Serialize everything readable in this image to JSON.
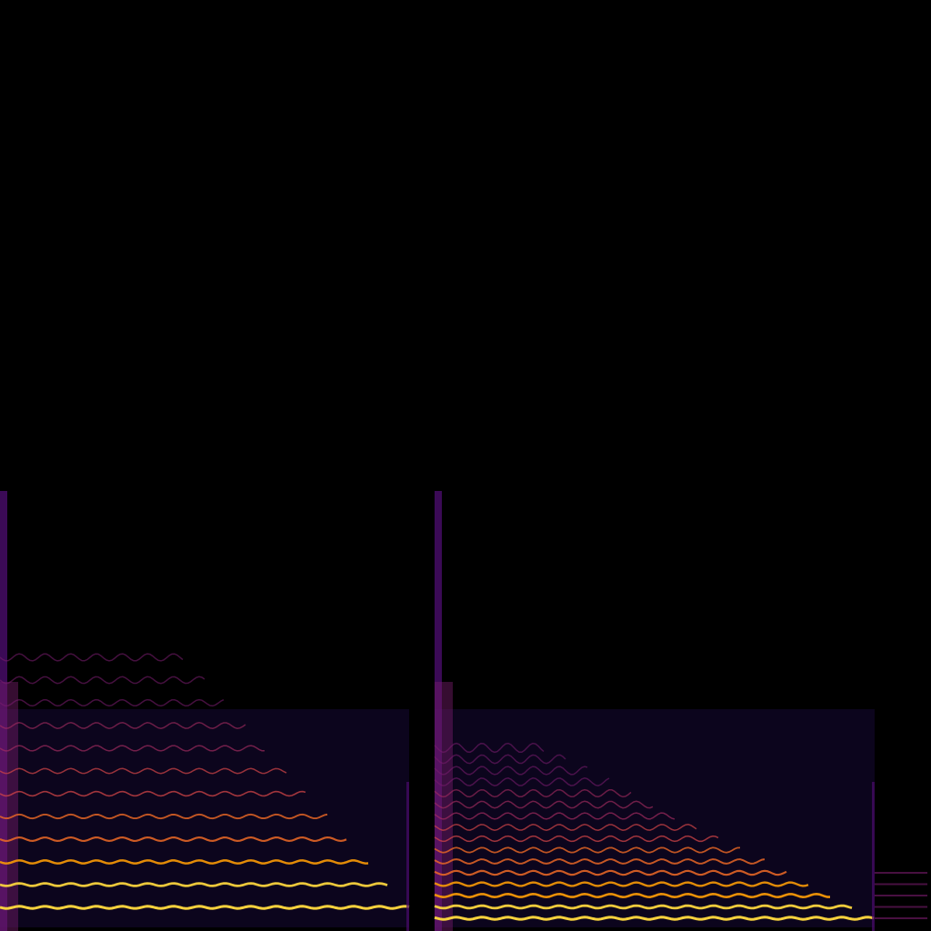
{
  "spectrogram": {
    "colormap": [
      "#000004",
      "#1b0c41",
      "#4a0c6b",
      "#781c6d",
      "#a52c60",
      "#cf4446",
      "#ed6925",
      "#fb9b06",
      "#f7d13d",
      "#fcffa4"
    ],
    "background": "#000000",
    "notes": [
      {
        "onset_fraction": 0.0,
        "offset_fraction": 0.44,
        "harmonics": 12,
        "vibrato": true
      },
      {
        "onset_fraction": 0.467,
        "offset_fraction": 0.94,
        "harmonics": 16,
        "vibrato": true
      }
    ]
  }
}
